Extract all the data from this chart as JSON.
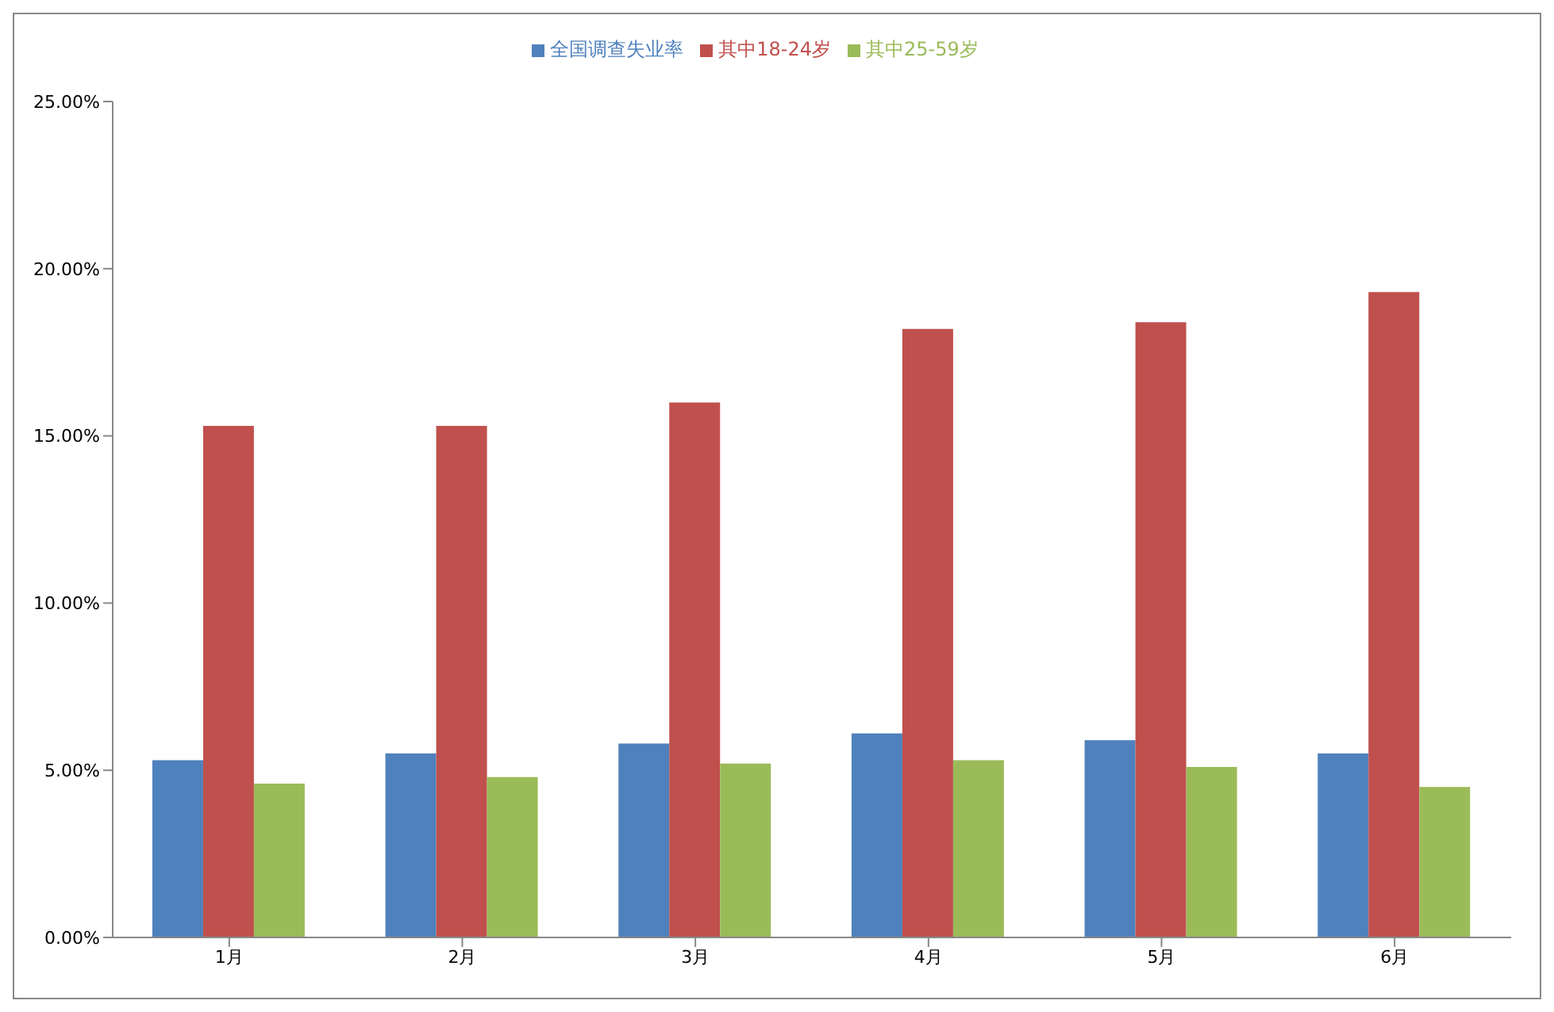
{
  "chart_data": {
    "type": "bar",
    "categories": [
      "1月",
      "2月",
      "3月",
      "4月",
      "5月",
      "6月"
    ],
    "series": [
      {
        "name": "全国调查失业率",
        "color": "#4f81bd",
        "values": [
          5.3,
          5.5,
          5.8,
          6.1,
          5.9,
          5.5
        ]
      },
      {
        "name": "其中18-24岁",
        "color": "#c0504d",
        "values": [
          15.3,
          15.3,
          16.0,
          18.2,
          18.4,
          19.3
        ]
      },
      {
        "name": "其中25-59岁",
        "color": "#9bbb59",
        "values": [
          4.6,
          4.8,
          5.2,
          5.3,
          5.1,
          4.5
        ]
      }
    ],
    "ylim": [
      0,
      25
    ],
    "yticks": [
      {
        "value": 0,
        "label": "0.00%"
      },
      {
        "value": 5,
        "label": "5.00%"
      },
      {
        "value": 10,
        "label": "10.00%"
      },
      {
        "value": 15,
        "label": "15.00%"
      },
      {
        "value": 20,
        "label": "20.00%"
      },
      {
        "value": 25,
        "label": "25.00%"
      }
    ],
    "grid": false,
    "legend": "top"
  }
}
